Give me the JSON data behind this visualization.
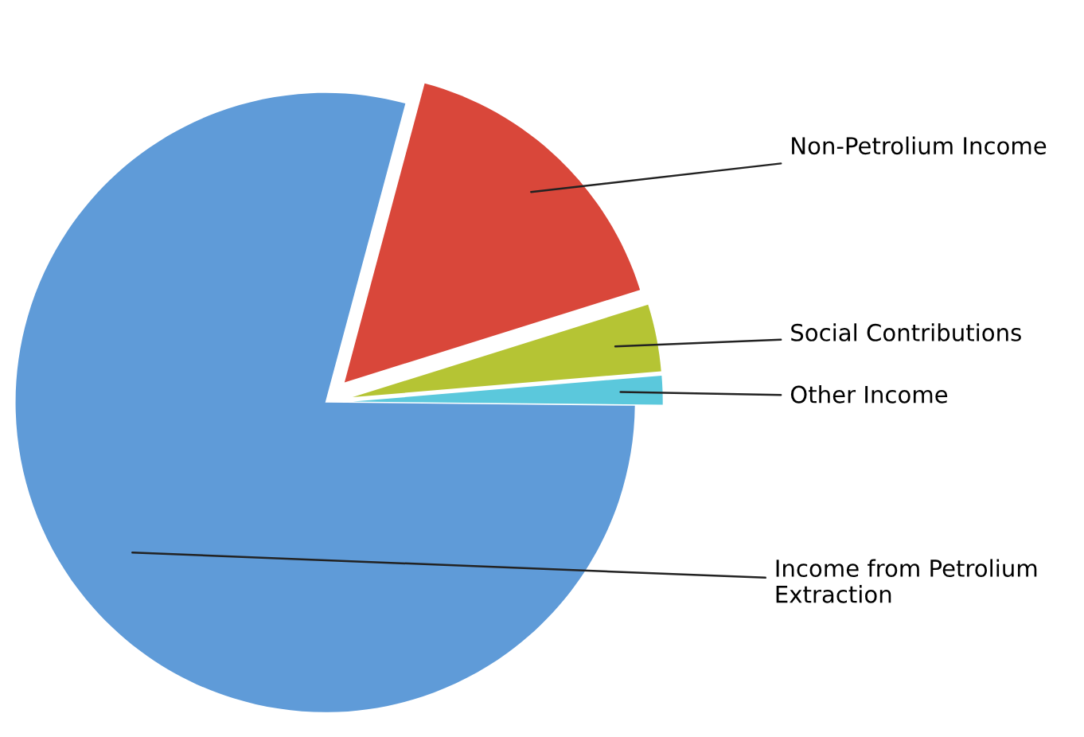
{
  "chart_data": {
    "type": "pie",
    "categories": [
      "Non-Petrolium Income",
      "Social Contributions",
      "Other Income",
      "Income from Petrolium Extraction"
    ],
    "values": [
      16,
      3.5,
      1.5,
      79
    ],
    "colors": [
      "#d9473a",
      "#b5c434",
      "#5bc8dc",
      "#5f9bd8"
    ],
    "legend": false
  }
}
